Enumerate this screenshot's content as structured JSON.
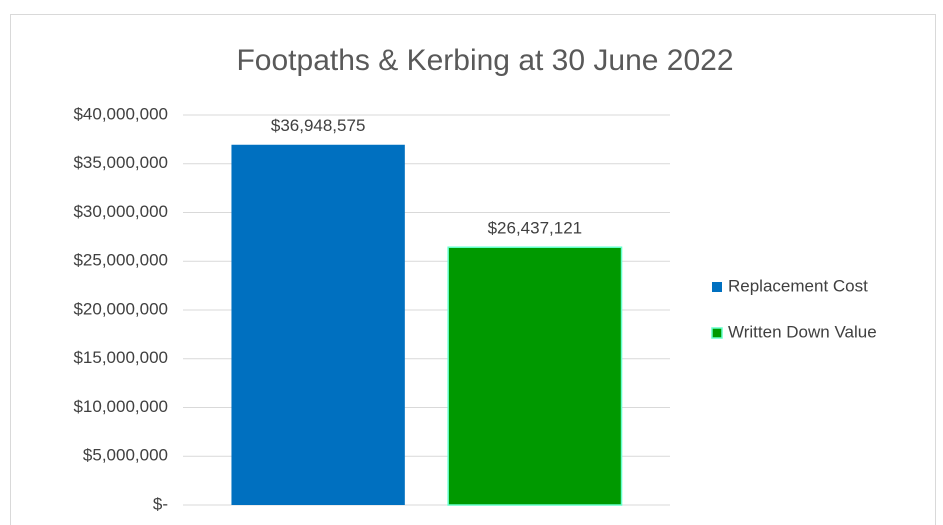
{
  "chart_data": {
    "type": "bar",
    "title": "Footpaths & Kerbing at 30 June 2022",
    "categories": [
      null
    ],
    "series": [
      {
        "name": "Replacement Cost",
        "color": "#0070c0",
        "values": [
          36948575
        ],
        "value_labels": [
          "$36,948,575"
        ]
      },
      {
        "name": "Written Down Value",
        "color": "#009900",
        "edgecolor": "#66ffcc",
        "values": [
          26437121
        ],
        "value_labels": [
          "$26,437,121"
        ]
      }
    ],
    "ylim": [
      0,
      40000000
    ],
    "yticks": [
      {
        "value": 0,
        "label": "$-"
      },
      {
        "value": 5000000,
        "label": "$5,000,000"
      },
      {
        "value": 10000000,
        "label": "$10,000,000"
      },
      {
        "value": 15000000,
        "label": "$15,000,000"
      },
      {
        "value": 20000000,
        "label": "$20,000,000"
      },
      {
        "value": 25000000,
        "label": "$25,000,000"
      },
      {
        "value": 30000000,
        "label": "$30,000,000"
      },
      {
        "value": 35000000,
        "label": "$35,000,000"
      },
      {
        "value": 40000000,
        "label": "$40,000,000"
      }
    ],
    "grid": true,
    "legend": "right"
  }
}
